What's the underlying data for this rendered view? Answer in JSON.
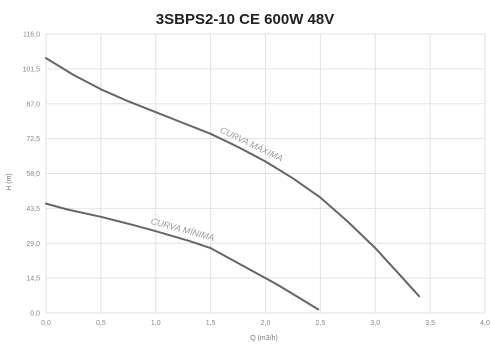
{
  "chart_data": {
    "type": "line",
    "title": "3SBPS2-10 CE 600W 48V",
    "xlabel": "Q (m3/h)",
    "ylabel": "H (m)",
    "xlim": [
      0.0,
      4.0
    ],
    "ylim": [
      0.0,
      116.0
    ],
    "x_ticks": [
      "0,0",
      "0,5",
      "1,0",
      "1,5",
      "2,0",
      "2,5",
      "3,0",
      "3,5",
      "4,0"
    ],
    "y_ticks": [
      "0,0",
      "14,5",
      "29,0",
      "43,5",
      "58,0",
      "72,5",
      "87,0",
      "101,5",
      "116,0"
    ],
    "x_tick_values": [
      0,
      0.5,
      1.0,
      1.5,
      2.0,
      2.5,
      3.0,
      3.5,
      4.0
    ],
    "y_tick_values": [
      0,
      14.5,
      29.0,
      43.5,
      58.0,
      72.5,
      87.0,
      101.5,
      116.0
    ],
    "grid": true,
    "series": [
      {
        "name": "CURVA MÁXIMA",
        "color": "#666666",
        "points": [
          [
            0.0,
            106.0
          ],
          [
            0.25,
            99.0
          ],
          [
            0.5,
            93.0
          ],
          [
            0.75,
            88.0
          ],
          [
            1.0,
            83.5
          ],
          [
            1.25,
            79.0
          ],
          [
            1.5,
            74.5
          ],
          [
            1.75,
            69.0
          ],
          [
            2.0,
            63.0
          ],
          [
            2.25,
            56.0
          ],
          [
            2.5,
            48.0
          ],
          [
            2.75,
            38.0
          ],
          [
            3.0,
            27.0
          ],
          [
            3.2,
            17.0
          ],
          [
            3.4,
            7.0
          ]
        ]
      },
      {
        "name": "CURVA MÍNIMA",
        "color": "#666666",
        "points": [
          [
            0.0,
            45.5
          ],
          [
            0.2,
            43.0
          ],
          [
            0.5,
            40.0
          ],
          [
            0.8,
            36.5
          ],
          [
            1.0,
            34.0
          ],
          [
            1.3,
            30.0
          ],
          [
            1.5,
            27.0
          ],
          [
            1.7,
            22.0
          ],
          [
            1.9,
            17.0
          ],
          [
            2.1,
            12.0
          ],
          [
            2.3,
            6.5
          ],
          [
            2.48,
            1.5
          ]
        ]
      }
    ]
  }
}
